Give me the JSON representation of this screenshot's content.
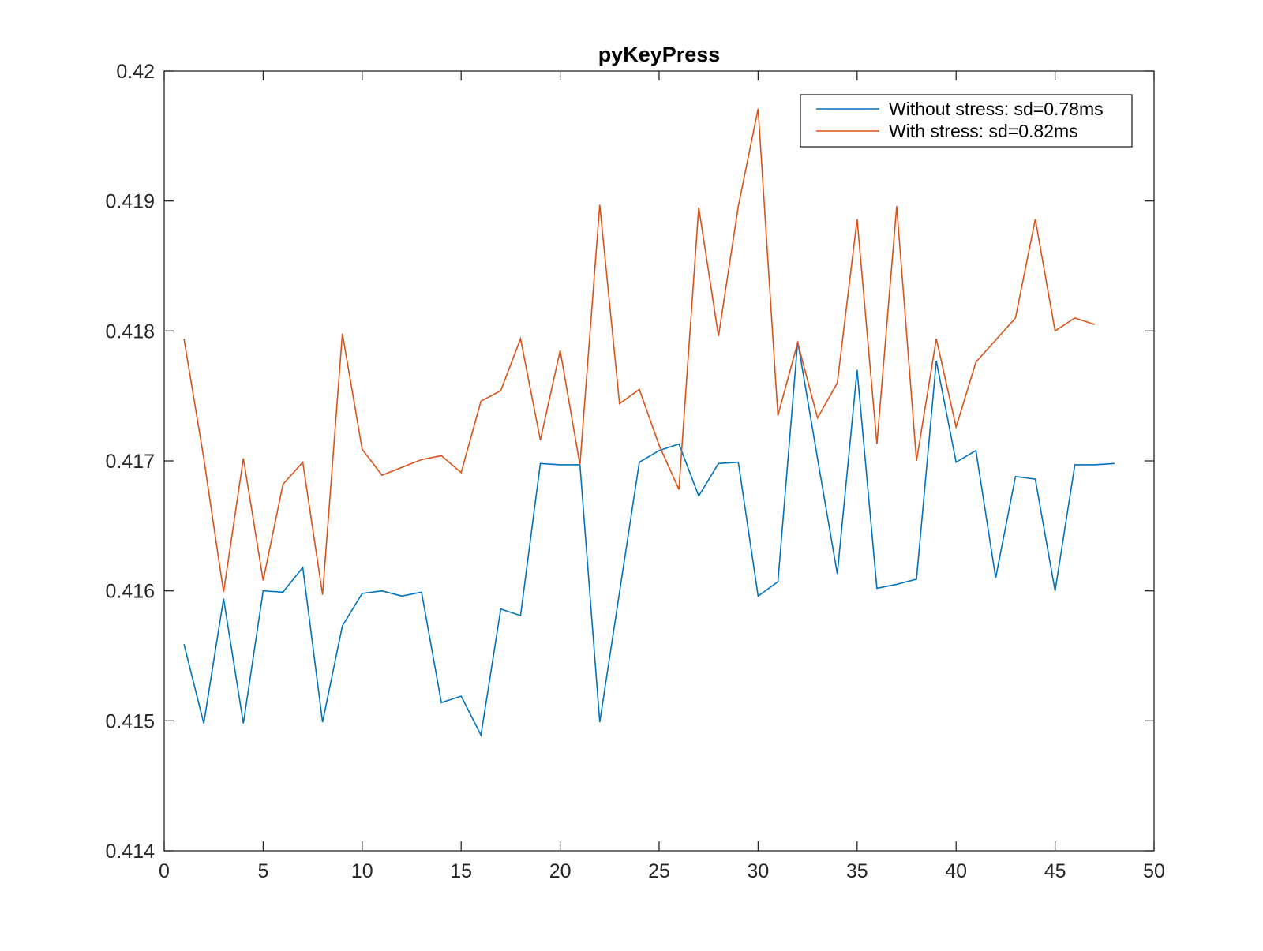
{
  "chart_data": {
    "type": "line",
    "title": "pyKeyPress",
    "xlabel": "",
    "ylabel": "",
    "xlim": [
      0,
      50
    ],
    "ylim": [
      0.414,
      0.42
    ],
    "x_ticks": [
      0,
      5,
      10,
      15,
      20,
      25,
      30,
      35,
      40,
      45,
      50
    ],
    "x_tick_labels": [
      "0",
      "5",
      "10",
      "15",
      "20",
      "25",
      "30",
      "35",
      "40",
      "45",
      "50"
    ],
    "y_ticks": [
      0.414,
      0.415,
      0.416,
      0.417,
      0.418,
      0.419,
      0.42
    ],
    "y_tick_labels": [
      "0.414",
      "0.415",
      "0.416",
      "0.417",
      "0.418",
      "0.419",
      "0.42"
    ],
    "grid": false,
    "legend_position": "top-right",
    "series": [
      {
        "name": "Without stress: sd=0.78ms",
        "color": "#0072BD",
        "x": [
          1,
          2,
          3,
          4,
          5,
          6,
          7,
          8,
          9,
          10,
          11,
          12,
          13,
          14,
          15,
          16,
          17,
          18,
          19,
          20,
          21,
          22,
          23,
          24,
          25,
          26,
          27,
          28,
          29,
          30,
          31,
          32,
          33,
          34,
          35,
          36,
          37,
          38,
          39,
          40,
          41,
          42,
          43,
          44,
          45,
          46,
          47,
          48
        ],
        "values": [
          0.41559,
          0.41498,
          0.41594,
          0.41498,
          0.416,
          0.41599,
          0.41618,
          0.41499,
          0.41573,
          0.41598,
          0.416,
          0.41596,
          0.41599,
          0.41514,
          0.41519,
          0.41489,
          0.41586,
          0.41581,
          0.41698,
          0.41697,
          0.41697,
          0.41499,
          0.41599,
          0.41699,
          0.41708,
          0.41713,
          0.41673,
          0.41698,
          0.41699,
          0.41596,
          0.41607,
          0.41792,
          0.41702,
          0.41613,
          0.4177,
          0.41602,
          0.41605,
          0.41609,
          0.41777,
          0.41699,
          0.41708,
          0.4161,
          0.41688,
          0.41686,
          0.416,
          0.41697,
          0.41697,
          0.41698
        ]
      },
      {
        "name": "With stress: sd=0.82ms",
        "color": "#D95319",
        "x": [
          1,
          2,
          3,
          4,
          5,
          6,
          7,
          8,
          9,
          10,
          11,
          12,
          13,
          14,
          15,
          16,
          17,
          18,
          19,
          20,
          21,
          22,
          23,
          24,
          25,
          26,
          27,
          28,
          29,
          30,
          31,
          32,
          33,
          34,
          35,
          36,
          37,
          38,
          39,
          40,
          41,
          42,
          43,
          44,
          45,
          46,
          47
        ],
        "values": [
          0.41794,
          0.41702,
          0.41599,
          0.41702,
          0.41608,
          0.41682,
          0.41699,
          0.41597,
          0.41798,
          0.41709,
          0.41689,
          0.41695,
          0.41701,
          0.41704,
          0.41691,
          0.41746,
          0.41754,
          0.41794,
          0.41716,
          0.41785,
          0.41697,
          0.41897,
          0.41744,
          0.41755,
          0.41712,
          0.41678,
          0.41895,
          0.41796,
          0.41896,
          0.41971,
          0.41735,
          0.41791,
          0.41733,
          0.4176,
          0.41886,
          0.41713,
          0.41896,
          0.417,
          0.41794,
          0.41726,
          0.41776,
          0.41793,
          0.4181,
          0.41886,
          0.418,
          0.4181,
          0.41805
        ]
      }
    ]
  }
}
